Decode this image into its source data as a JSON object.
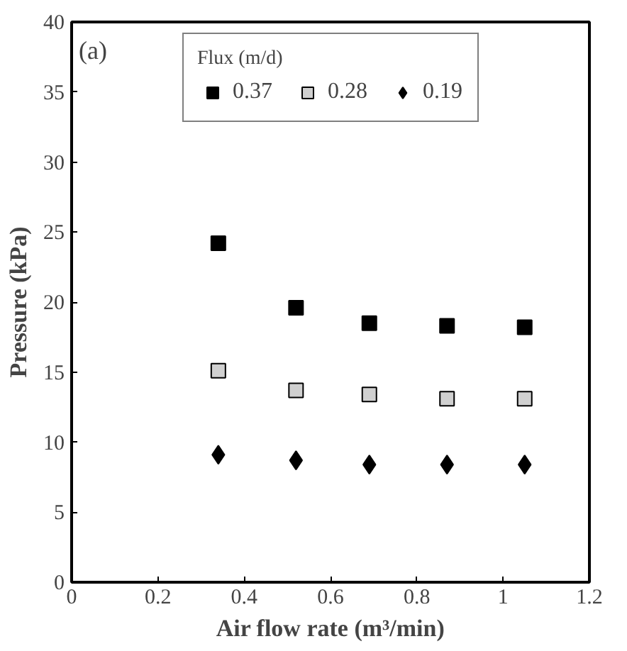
{
  "chart_data": {
    "type": "scatter",
    "xlabel": "Air flow rate (m³/min)",
    "ylabel": "Pressure (kPa)",
    "legend_title": "Flux (m/d)",
    "annotations": [
      "(a)"
    ],
    "x": [
      0.34,
      0.52,
      0.69,
      0.87,
      1.05
    ],
    "series": [
      {
        "name": "0.37",
        "color": "#000000",
        "marker": "square",
        "values": [
          24.2,
          19.6,
          18.5,
          18.3,
          18.2
        ]
      },
      {
        "name": "0.28",
        "color": "#d0d0d0",
        "marker": "square",
        "values": [
          15.1,
          13.7,
          13.4,
          13.1,
          13.1
        ]
      },
      {
        "name": "0.19",
        "color": "#000000",
        "marker": "diamond",
        "values": [
          9.1,
          8.7,
          8.4,
          8.4,
          8.4
        ]
      }
    ],
    "xlim": [
      0,
      1.2
    ],
    "xticks": [
      0,
      0.2,
      0.4,
      0.6,
      0.8,
      1,
      1.2
    ],
    "ylim": [
      0,
      40
    ],
    "yticks": [
      0,
      5,
      10,
      15,
      20,
      25,
      30,
      35,
      40
    ],
    "grid": false,
    "legend": "top"
  }
}
